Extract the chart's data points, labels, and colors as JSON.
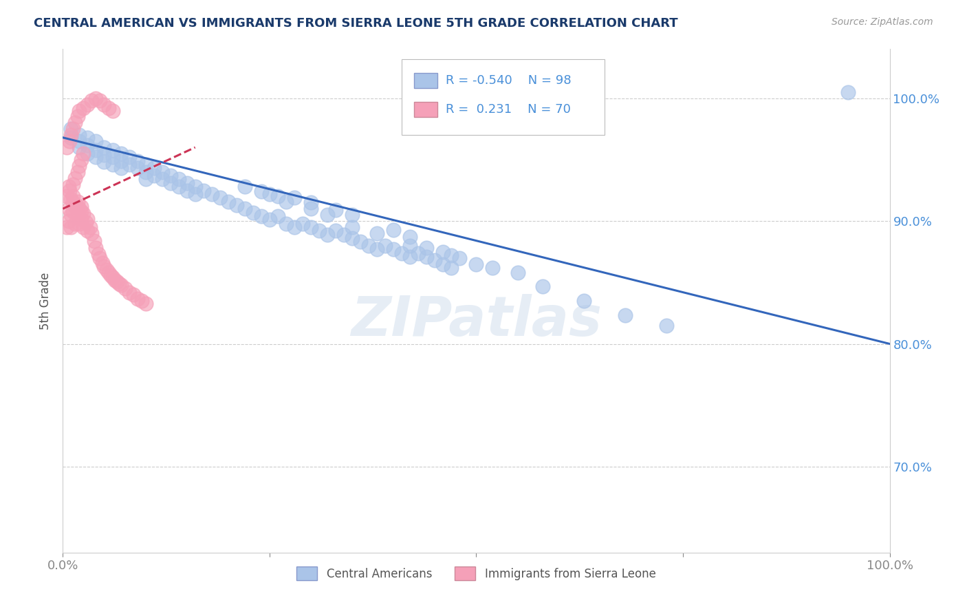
{
  "title": "CENTRAL AMERICAN VS IMMIGRANTS FROM SIERRA LEONE 5TH GRADE CORRELATION CHART",
  "source_text": "Source: ZipAtlas.com",
  "ylabel": "5th Grade",
  "watermark": "ZIPatlas",
  "xlim": [
    0.0,
    1.0
  ],
  "ylim": [
    0.63,
    1.04
  ],
  "yticks": [
    0.7,
    0.8,
    0.9,
    1.0
  ],
  "ytick_labels": [
    "70.0%",
    "80.0%",
    "90.0%",
    "100.0%"
  ],
  "legend_R_blue": "-0.540",
  "legend_N_blue": "98",
  "legend_R_pink": "0.231",
  "legend_N_pink": "70",
  "legend_label_blue": "Central Americans",
  "legend_label_pink": "Immigrants from Sierra Leone",
  "blue_color": "#aac4e8",
  "pink_color": "#f5a0b8",
  "blue_line_color": "#3366bb",
  "pink_line_color": "#cc3355",
  "title_color": "#1a3a6b",
  "axis_label_color": "#555555",
  "tick_color": "#888888",
  "grid_color": "#cccccc",
  "background_color": "#ffffff",
  "blue_scatter_x": [
    0.01,
    0.01,
    0.02,
    0.02,
    0.02,
    0.03,
    0.03,
    0.03,
    0.04,
    0.04,
    0.04,
    0.05,
    0.05,
    0.05,
    0.06,
    0.06,
    0.06,
    0.07,
    0.07,
    0.07,
    0.08,
    0.08,
    0.09,
    0.09,
    0.1,
    0.1,
    0.1,
    0.11,
    0.11,
    0.12,
    0.12,
    0.13,
    0.13,
    0.14,
    0.14,
    0.15,
    0.15,
    0.16,
    0.16,
    0.17,
    0.18,
    0.19,
    0.2,
    0.21,
    0.22,
    0.23,
    0.24,
    0.25,
    0.26,
    0.27,
    0.28,
    0.29,
    0.3,
    0.31,
    0.32,
    0.33,
    0.34,
    0.35,
    0.36,
    0.37,
    0.38,
    0.39,
    0.4,
    0.41,
    0.42,
    0.43,
    0.44,
    0.45,
    0.46,
    0.47,
    0.3,
    0.32,
    0.35,
    0.38,
    0.42,
    0.44,
    0.46,
    0.47,
    0.48,
    0.5,
    0.52,
    0.55,
    0.4,
    0.42,
    0.3,
    0.35,
    0.28,
    0.33,
    0.25,
    0.27,
    0.58,
    0.63,
    0.68,
    0.73,
    0.95,
    0.22,
    0.24,
    0.26
  ],
  "blue_scatter_y": [
    0.975,
    0.968,
    0.97,
    0.965,
    0.96,
    0.968,
    0.962,
    0.955,
    0.965,
    0.958,
    0.952,
    0.96,
    0.954,
    0.948,
    0.958,
    0.952,
    0.946,
    0.955,
    0.949,
    0.943,
    0.952,
    0.946,
    0.949,
    0.943,
    0.946,
    0.94,
    0.934,
    0.943,
    0.937,
    0.94,
    0.934,
    0.937,
    0.931,
    0.934,
    0.928,
    0.931,
    0.925,
    0.928,
    0.922,
    0.925,
    0.922,
    0.919,
    0.916,
    0.913,
    0.91,
    0.907,
    0.904,
    0.901,
    0.904,
    0.898,
    0.895,
    0.898,
    0.895,
    0.892,
    0.889,
    0.892,
    0.889,
    0.886,
    0.883,
    0.88,
    0.877,
    0.88,
    0.877,
    0.874,
    0.871,
    0.874,
    0.871,
    0.868,
    0.865,
    0.862,
    0.91,
    0.905,
    0.895,
    0.89,
    0.88,
    0.878,
    0.875,
    0.872,
    0.87,
    0.865,
    0.862,
    0.858,
    0.893,
    0.887,
    0.915,
    0.905,
    0.919,
    0.909,
    0.922,
    0.916,
    0.847,
    0.835,
    0.823,
    0.815,
    1.005,
    0.928,
    0.924,
    0.92
  ],
  "pink_scatter_x": [
    0.005,
    0.005,
    0.007,
    0.007,
    0.01,
    0.01,
    0.01,
    0.012,
    0.012,
    0.015,
    0.015,
    0.018,
    0.018,
    0.02,
    0.02,
    0.022,
    0.022,
    0.025,
    0.025,
    0.028,
    0.03,
    0.03,
    0.033,
    0.035,
    0.038,
    0.04,
    0.043,
    0.045,
    0.048,
    0.05,
    0.053,
    0.055,
    0.058,
    0.06,
    0.063,
    0.065,
    0.068,
    0.07,
    0.075,
    0.08,
    0.085,
    0.09,
    0.095,
    0.1,
    0.008,
    0.012,
    0.015,
    0.018,
    0.02,
    0.022,
    0.025,
    0.005,
    0.008,
    0.01,
    0.012,
    0.015,
    0.018,
    0.02,
    0.025,
    0.03,
    0.035,
    0.04,
    0.045,
    0.05,
    0.055,
    0.06,
    0.007,
    0.012,
    0.017,
    0.022
  ],
  "pink_scatter_y": [
    0.895,
    0.92,
    0.9,
    0.928,
    0.895,
    0.905,
    0.918,
    0.908,
    0.92,
    0.898,
    0.912,
    0.905,
    0.916,
    0.898,
    0.91,
    0.902,
    0.912,
    0.895,
    0.906,
    0.899,
    0.892,
    0.902,
    0.895,
    0.89,
    0.884,
    0.878,
    0.873,
    0.87,
    0.866,
    0.863,
    0.86,
    0.858,
    0.856,
    0.854,
    0.852,
    0.851,
    0.849,
    0.848,
    0.845,
    0.842,
    0.84,
    0.837,
    0.835,
    0.833,
    0.925,
    0.93,
    0.935,
    0.94,
    0.945,
    0.95,
    0.955,
    0.96,
    0.965,
    0.97,
    0.975,
    0.98,
    0.985,
    0.99,
    0.992,
    0.995,
    0.998,
    1.0,
    0.998,
    0.995,
    0.992,
    0.99,
    0.91,
    0.915,
    0.912,
    0.908
  ],
  "blue_trend_x": [
    0.0,
    1.0
  ],
  "blue_trend_y": [
    0.968,
    0.8
  ],
  "pink_trend_x": [
    0.0,
    0.16
  ],
  "pink_trend_y": [
    0.91,
    0.96
  ]
}
